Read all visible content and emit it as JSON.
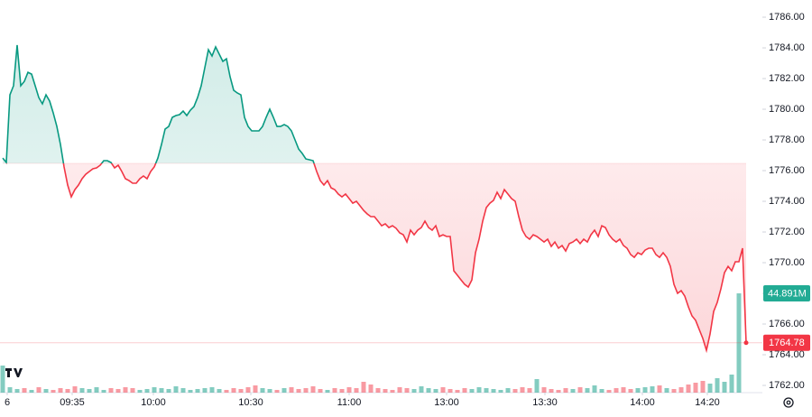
{
  "chart_data": {
    "type": "baseline",
    "values": [
      1776.82,
      1776.53,
      1780.94,
      1781.53,
      1784.18,
      1781.53,
      1781.82,
      1782.41,
      1782.29,
      1781.53,
      1780.76,
      1780.35,
      1780.94,
      1780.53,
      1779.76,
      1778.88,
      1777.71,
      1776.24,
      1775.06,
      1774.29,
      1774.76,
      1775.06,
      1775.47,
      1775.76,
      1775.94,
      1776.12,
      1776.18,
      1776.35,
      1776.65,
      1776.65,
      1776.53,
      1776.18,
      1776.35,
      1775.94,
      1775.47,
      1775.35,
      1775.18,
      1775.18,
      1775.47,
      1775.65,
      1775.47,
      1775.94,
      1776.24,
      1776.82,
      1777.71,
      1778.71,
      1778.88,
      1779.47,
      1779.59,
      1779.65,
      1779.88,
      1779.59,
      1779.94,
      1780.18,
      1780.76,
      1781.53,
      1782.71,
      1783.88,
      1783.47,
      1784.06,
      1783.59,
      1783.12,
      1783.29,
      1782.12,
      1781.24,
      1781.06,
      1780.94,
      1779.47,
      1778.88,
      1778.59,
      1778.59,
      1778.59,
      1778.88,
      1779.47,
      1780.0,
      1779.47,
      1778.88,
      1778.88,
      1779.0,
      1778.88,
      1778.59,
      1778.0,
      1777.41,
      1777.12,
      1776.76,
      1776.71,
      1776.65,
      1775.94,
      1775.35,
      1775.06,
      1775.35,
      1774.88,
      1774.76,
      1774.47,
      1774.29,
      1774.47,
      1774.18,
      1773.88,
      1774.0,
      1773.71,
      1773.41,
      1773.18,
      1773.0,
      1773.0,
      1772.71,
      1772.41,
      1772.53,
      1772.29,
      1772.41,
      1772.24,
      1771.94,
      1771.82,
      1771.35,
      1772.12,
      1771.82,
      1772.12,
      1772.29,
      1772.71,
      1772.29,
      1772.12,
      1772.41,
      1771.71,
      1771.82,
      1771.71,
      1771.71,
      1769.47,
      1769.18,
      1768.88,
      1768.59,
      1768.41,
      1768.88,
      1770.65,
      1771.53,
      1772.71,
      1773.59,
      1773.88,
      1774.06,
      1774.59,
      1774.18,
      1774.76,
      1774.47,
      1774.18,
      1774.0,
      1773.0,
      1772.12,
      1771.71,
      1771.53,
      1771.82,
      1771.71,
      1771.53,
      1771.35,
      1771.53,
      1771.06,
      1771.35,
      1770.94,
      1771.12,
      1770.76,
      1771.24,
      1771.35,
      1771.53,
      1771.24,
      1771.53,
      1771.35,
      1771.82,
      1772.12,
      1771.71,
      1772.41,
      1772.29,
      1771.82,
      1771.53,
      1771.35,
      1771.53,
      1771.12,
      1770.94,
      1770.53,
      1770.35,
      1770.65,
      1770.53,
      1770.82,
      1770.94,
      1770.94,
      1770.53,
      1770.35,
      1770.65,
      1770.35,
      1769.76,
      1768.59,
      1768.0,
      1768.18,
      1767.82,
      1767.12,
      1766.53,
      1766.24,
      1765.65,
      1765.06,
      1764.29,
      1765.35,
      1766.82,
      1767.41,
      1768.29,
      1769.35,
      1769.76,
      1769.47,
      1770.06,
      1770.06,
      1770.94,
      1764.78
    ],
    "baseline": 1776.47,
    "up_color": "#089981",
    "down_color": "#f23645",
    "ylim": [
      1761.53,
      1787.12
    ],
    "yticks": [
      {
        "value": 1762,
        "label": "1762.00"
      },
      {
        "value": 1764,
        "label": "1764.00"
      },
      {
        "value": 1766,
        "label": "1766.00"
      },
      {
        "value": 1768,
        "label": "1768.00"
      },
      {
        "value": 1770,
        "label": "1770.00"
      },
      {
        "value": 1772,
        "label": "1772.00"
      },
      {
        "value": 1774,
        "label": "1774.00"
      },
      {
        "value": 1776,
        "label": "1776.00"
      },
      {
        "value": 1778,
        "label": "1778.00"
      },
      {
        "value": 1780,
        "label": "1780.00"
      },
      {
        "value": 1782,
        "label": "1782.00"
      },
      {
        "value": 1784,
        "label": "1784.00"
      },
      {
        "value": 1786,
        "label": "1786.00"
      }
    ],
    "xlim": [
      0,
      211.25
    ],
    "xticks": [
      {
        "value": 2,
        "label": "6"
      },
      {
        "value": 20,
        "label": "09:35"
      },
      {
        "value": 42.5,
        "label": "10:00"
      },
      {
        "value": 69.5,
        "label": "10:30"
      },
      {
        "value": 96.75,
        "label": "11:00"
      },
      {
        "value": 123.75,
        "label": "13:00"
      },
      {
        "value": 151,
        "label": "13:30"
      },
      {
        "value": 178,
        "label": "14:00"
      },
      {
        "value": 196,
        "label": "14:20"
      }
    ],
    "last_label": "1764.78",
    "volume_label": "44.891M",
    "volume": {
      "ylim": [
        0,
        130
      ],
      "values": [
        30,
        6,
        4,
        5,
        3,
        6,
        4,
        3,
        5,
        4,
        7,
        5,
        4,
        6,
        3,
        5,
        4,
        6,
        5,
        3,
        4,
        6,
        5,
        4,
        7,
        5,
        3,
        4,
        5,
        6,
        4,
        3,
        5,
        4,
        6,
        8,
        5,
        4,
        3,
        5,
        6,
        4,
        5,
        7,
        4,
        3,
        5,
        4,
        6,
        5,
        12,
        9,
        5,
        4,
        3,
        6,
        5,
        4,
        7,
        5,
        4,
        6,
        4,
        3,
        5,
        4,
        6,
        5,
        4,
        3,
        5,
        4,
        6,
        5,
        15,
        6,
        4,
        3,
        5,
        4,
        6,
        5,
        8,
        4,
        3,
        5,
        6,
        4,
        5,
        6,
        7,
        8,
        5,
        4,
        6,
        9,
        11,
        13,
        10,
        16,
        12,
        20,
        110
      ]
    }
  }
}
